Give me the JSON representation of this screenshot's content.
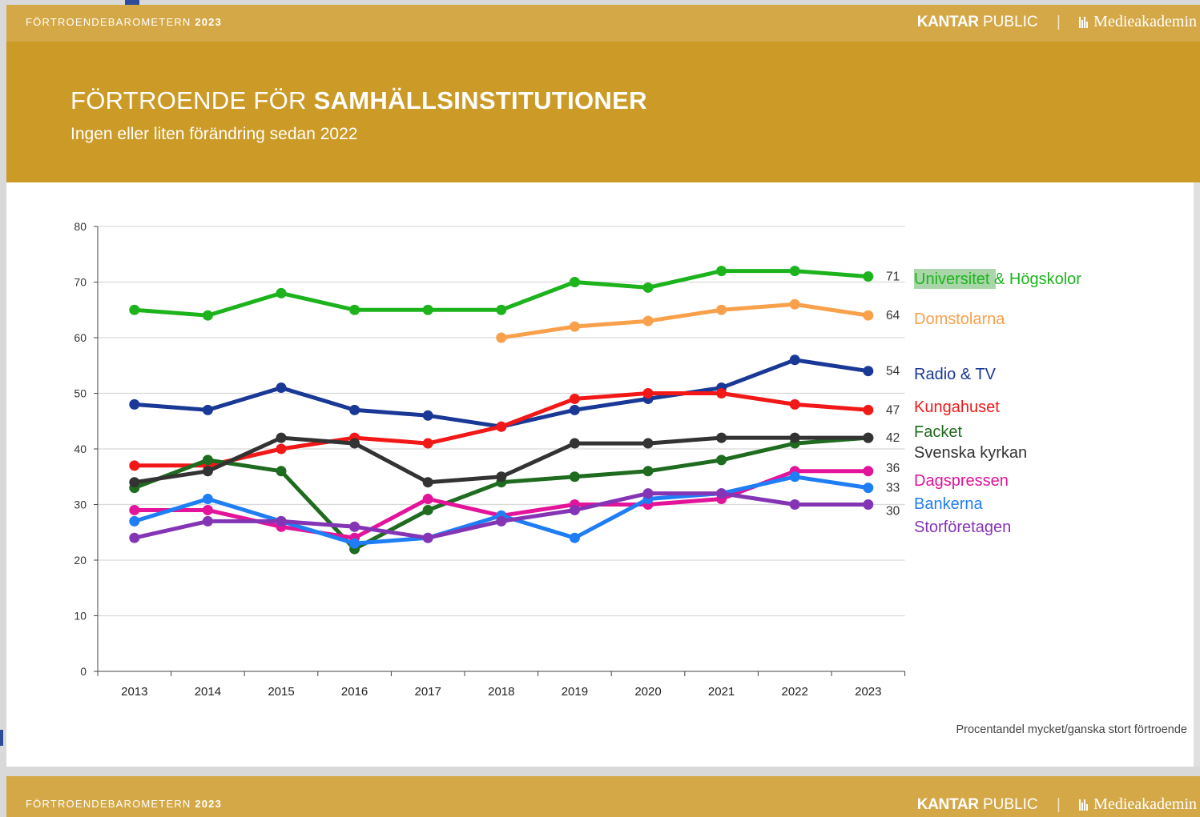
{
  "top_strip": {
    "brand_prefix": "FÖRTROENDEBAROMETERN ",
    "brand_year": "2023",
    "kantar": "KANTAR",
    "public": " PUBLIC",
    "separator": "|",
    "medieakademin": "Medieakademin"
  },
  "header": {
    "title_prefix": "FÖRTROENDE FÖR ",
    "title_bold": "SAMHÄLLSINSTITUTIONER",
    "subtitle": "Ingen eller liten förändring sedan 2022"
  },
  "footnote": "Procentandel mycket/ganska stort förtroende",
  "bottom_strip": {
    "brand_prefix": "FÖRTROENDEBAROMETERN ",
    "brand_year": "2023",
    "kantar": "KANTAR",
    "public": " PUBLIC",
    "separator": "|",
    "medieakademin": "Medieakademin"
  },
  "chart_data": {
    "type": "line",
    "x": [
      "2013",
      "2014",
      "2015",
      "2016",
      "2017",
      "2018",
      "2019",
      "2020",
      "2021",
      "2022",
      "2023"
    ],
    "ylim": [
      0,
      80
    ],
    "yticks": [
      0,
      10,
      20,
      30,
      40,
      50,
      60,
      70,
      80
    ],
    "grid": "horizontal",
    "legend": "right, end of lines",
    "series": [
      {
        "name": "Universitet & Högskolor",
        "color": "#1db31d",
        "end_label": "71",
        "values": [
          65,
          64,
          68,
          65,
          65,
          65,
          70,
          69,
          72,
          72,
          71
        ]
      },
      {
        "name": "Domstolarna",
        "color": "#f9a04b",
        "end_label": "64",
        "values": [
          null,
          null,
          null,
          null,
          null,
          60,
          62,
          63,
          65,
          66,
          64
        ]
      },
      {
        "name": "Radio & TV",
        "color": "#1a3896",
        "end_label": "54",
        "values": [
          48,
          47,
          51,
          47,
          46,
          44,
          47,
          49,
          51,
          56,
          54
        ]
      },
      {
        "name": "Kungahuset",
        "color": "#f21818",
        "end_label": "47",
        "values": [
          37,
          37,
          40,
          42,
          41,
          44,
          49,
          50,
          50,
          48,
          47
        ]
      },
      {
        "name": "Facket",
        "color": "#1f6b1f",
        "end_label": "42",
        "values": [
          33,
          38,
          36,
          22,
          29,
          34,
          35,
          36,
          38,
          41,
          42
        ]
      },
      {
        "name": "Svenska kyrkan",
        "color": "#333333",
        "end_label": "",
        "values": [
          34,
          36,
          42,
          41,
          34,
          35,
          41,
          41,
          42,
          42,
          42
        ]
      },
      {
        "name": "Dagspressen",
        "color": "#e3139a",
        "end_label": "36",
        "values": [
          29,
          29,
          26,
          24,
          31,
          28,
          30,
          30,
          31,
          36,
          36
        ]
      },
      {
        "name": "Bankerna",
        "color": "#1f7ef5",
        "end_label": "33",
        "values": [
          27,
          31,
          27,
          23,
          24,
          28,
          24,
          31,
          32,
          35,
          33
        ]
      },
      {
        "name": "Storföretagen",
        "color": "#8435b5",
        "end_label": "30",
        "values": [
          24,
          27,
          27,
          26,
          24,
          27,
          29,
          32,
          32,
          30,
          30
        ]
      }
    ]
  }
}
